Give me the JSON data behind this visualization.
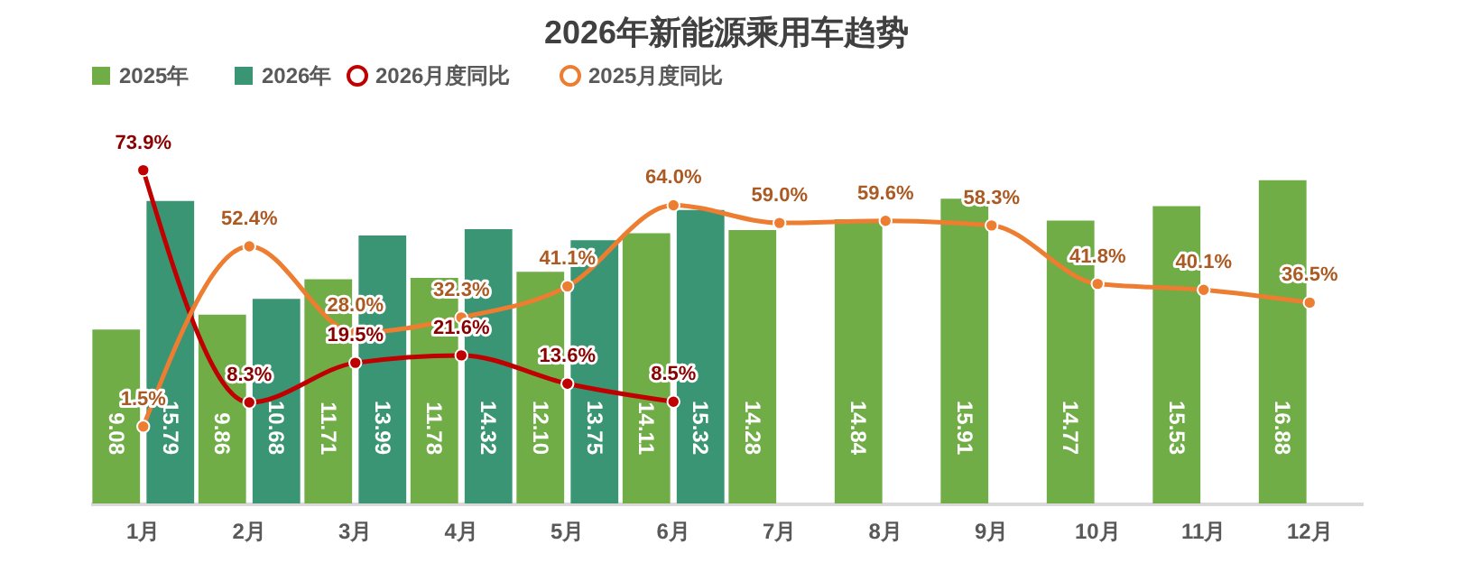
{
  "chart_data": {
    "type": "bar",
    "title": "2026年新能源乘用车趋势",
    "categories": [
      "1月",
      "2月",
      "3月",
      "4月",
      "5月",
      "6月",
      "7月",
      "8月",
      "9月",
      "10月",
      "11月",
      "12月"
    ],
    "series": [
      {
        "name": "2025年",
        "color": "#70ad47",
        "values": [
          9.08,
          9.86,
          11.71,
          11.78,
          12.1,
          14.11,
          14.28,
          14.84,
          15.91,
          14.77,
          15.53,
          16.88
        ],
        "value_labels": [
          "9.08",
          "9.86",
          "11.71",
          "11.78",
          "12.10",
          "14.11",
          "14.28",
          "14.84",
          "15.91",
          "14.77",
          "15.53",
          "16.88"
        ]
      },
      {
        "name": "2026年",
        "color": "#3a9574",
        "values": [
          15.79,
          10.68,
          13.99,
          14.32,
          13.75,
          15.32,
          null,
          null,
          null,
          null,
          null,
          null
        ],
        "value_labels": [
          "15.79",
          "10.68",
          "13.99",
          "14.32",
          "13.75",
          "15.32",
          null,
          null,
          null,
          null,
          null,
          null
        ]
      },
      {
        "name": "2026月度同比",
        "type": "line",
        "axis": "y2",
        "color": "#c00000",
        "values": [
          73.9,
          8.3,
          19.5,
          21.6,
          13.6,
          8.5,
          null,
          null,
          null,
          null,
          null,
          null
        ],
        "value_labels": [
          "73.9%",
          "8.3%",
          "19.5%",
          "21.6%",
          "13.6%",
          "8.5%",
          null,
          null,
          null,
          null,
          null,
          null
        ]
      },
      {
        "name": "2025月度同比",
        "type": "line",
        "axis": "y2",
        "color": "#ed7d31",
        "values": [
          1.5,
          52.4,
          28.0,
          32.3,
          41.1,
          64.0,
          59.0,
          59.6,
          58.3,
          41.8,
          40.1,
          36.5
        ],
        "value_labels": [
          "1.5%",
          "52.4%",
          "28.0%",
          "32.3%",
          "41.1%",
          "64.0%",
          "59.0%",
          "59.6%",
          "58.3%",
          "41.8%",
          "40.1%",
          "36.5%"
        ]
      }
    ],
    "legend": "top",
    "marker": "circle",
    "grid": false
  }
}
